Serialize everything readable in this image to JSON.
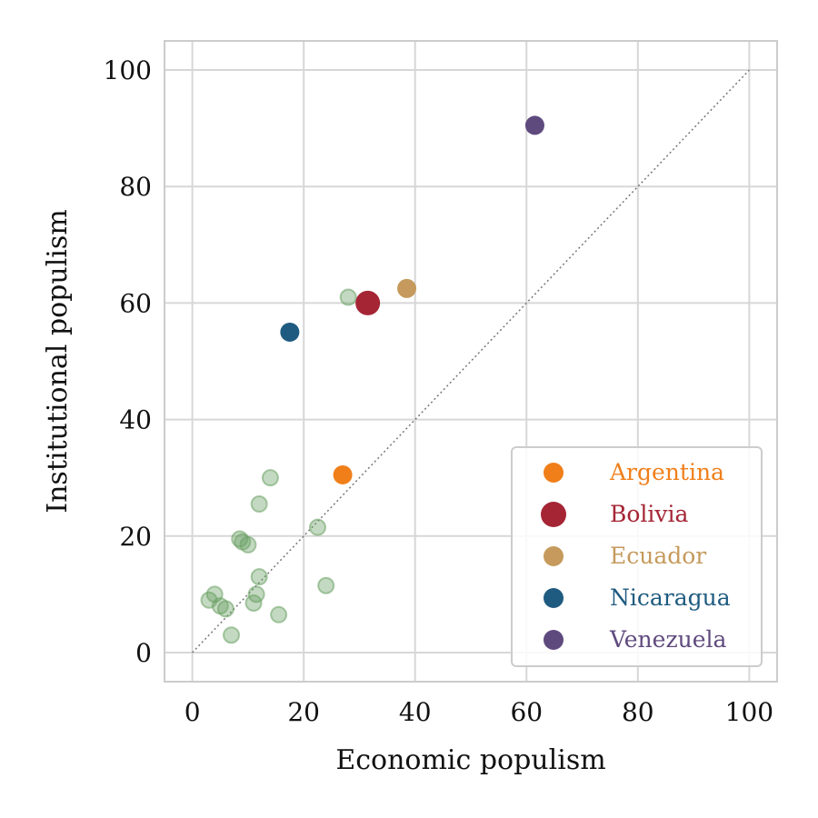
{
  "chart_data": {
    "type": "scatter",
    "xlabel": "Economic populism",
    "ylabel": "Institutional populism",
    "xlim": [
      -5,
      105
    ],
    "ylim": [
      -5,
      105
    ],
    "x_ticks": [
      0,
      20,
      40,
      60,
      80,
      100
    ],
    "y_ticks": [
      0,
      20,
      40,
      60,
      80,
      100
    ],
    "grid": true,
    "reference_line": {
      "from": [
        0,
        0
      ],
      "to": [
        100,
        100
      ],
      "style": "dotted",
      "color": "#777777"
    },
    "legend_position": "lower-right",
    "background_points": {
      "color": "#6aa163",
      "points": [
        [
          3,
          9
        ],
        [
          4,
          10
        ],
        [
          5,
          8
        ],
        [
          6,
          7.5
        ],
        [
          7,
          3
        ],
        [
          8.5,
          19.5
        ],
        [
          9,
          19
        ],
        [
          10,
          18.5
        ],
        [
          11,
          8.5
        ],
        [
          11.5,
          10
        ],
        [
          12,
          13
        ],
        [
          12,
          25.5
        ],
        [
          14,
          30
        ],
        [
          15.5,
          6.5
        ],
        [
          22.5,
          21.5
        ],
        [
          24,
          11.5
        ],
        [
          28,
          61
        ]
      ]
    },
    "series": [
      {
        "name": "Argentina",
        "color": "#f07f1a",
        "size": "small",
        "x": 27,
        "y": 30.5
      },
      {
        "name": "Bolivia",
        "color": "#a52535",
        "size": "large",
        "x": 31.5,
        "y": 60
      },
      {
        "name": "Ecuador",
        "color": "#c59a5c",
        "size": "small",
        "x": 38.5,
        "y": 62.5
      },
      {
        "name": "Nicaragua",
        "color": "#1f5b80",
        "size": "small",
        "x": 17.5,
        "y": 55
      },
      {
        "name": "Venezuela",
        "color": "#5f4a7e",
        "size": "small",
        "x": 61.5,
        "y": 90.5
      }
    ]
  }
}
